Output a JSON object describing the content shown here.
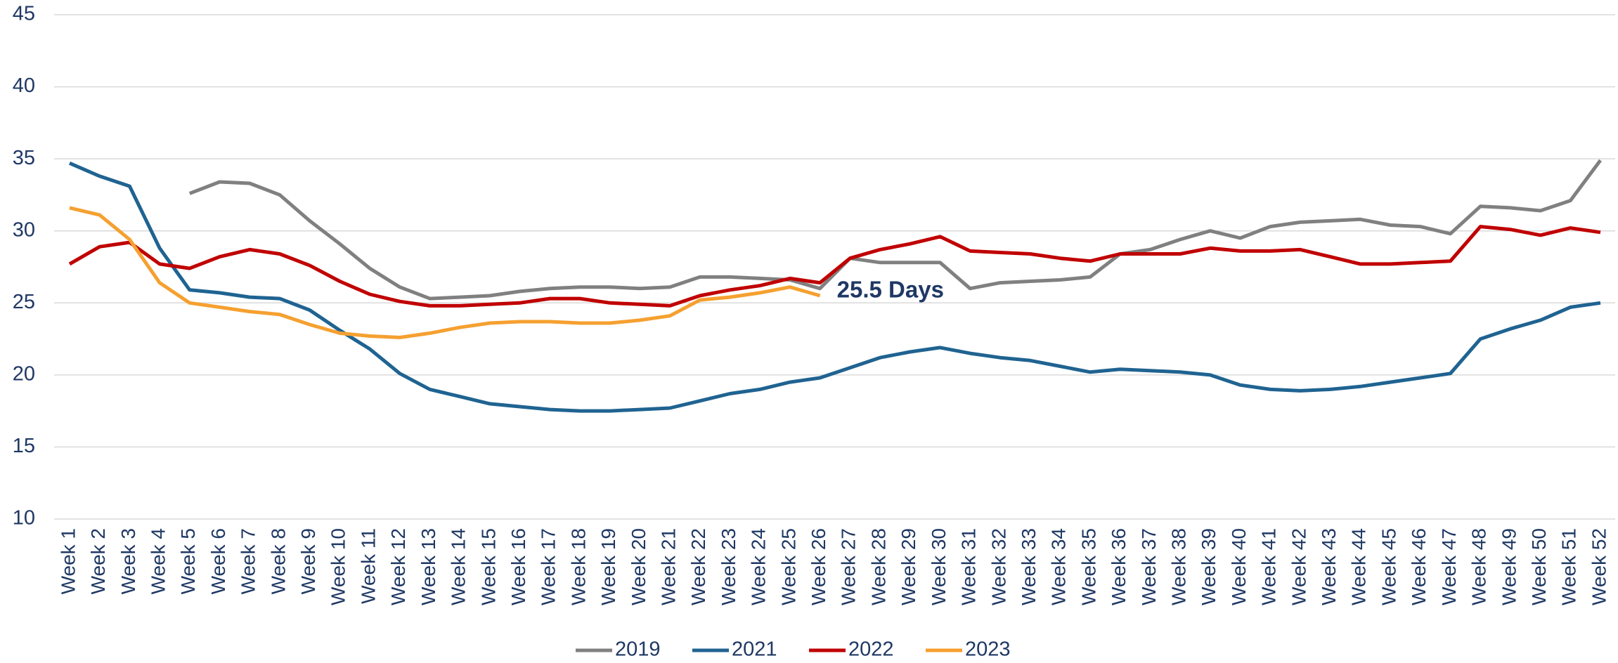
{
  "chart_data": {
    "type": "line",
    "categories": [
      "Week 1",
      "Week 2",
      "Week 3",
      "Week 4",
      "Week 5",
      "Week 6",
      "Week 7",
      "Week 8",
      "Week 9",
      "Week 10",
      "Week 11",
      "Week 12",
      "Week 13",
      "Week 14",
      "Week 15",
      "Week 16",
      "Week 17",
      "Week 18",
      "Week 19",
      "Week 20",
      "Week 21",
      "Week 22",
      "Week 23",
      "Week 24",
      "Week 25",
      "Week 26",
      "Week 27",
      "Week 28",
      "Week 29",
      "Week 30",
      "Week 31",
      "Week 32",
      "Week 33",
      "Week 34",
      "Week 35",
      "Week 36",
      "Week 37",
      "Week 38",
      "Week 39",
      "Week 40",
      "Week 41",
      "Week 42",
      "Week 43",
      "Week 44",
      "Week 45",
      "Week 46",
      "Week 47",
      "Week 48",
      "Week 49",
      "Week 50",
      "Week 51",
      "Week 52"
    ],
    "series": [
      {
        "name": "2019",
        "color": "#808080",
        "values": [
          null,
          null,
          null,
          null,
          32.6,
          33.4,
          33.3,
          32.5,
          30.7,
          29.1,
          27.4,
          26.1,
          25.3,
          25.4,
          25.5,
          25.8,
          26.0,
          26.1,
          26.1,
          26.0,
          26.1,
          26.8,
          26.8,
          26.7,
          26.6,
          26.0,
          28.1,
          27.8,
          27.8,
          27.8,
          26.0,
          26.4,
          26.5,
          26.6,
          26.8,
          28.4,
          28.7,
          29.4,
          30.0,
          29.5,
          30.3,
          30.6,
          30.7,
          30.8,
          30.4,
          30.3,
          29.8,
          31.7,
          31.6,
          31.4,
          32.1,
          34.9
        ]
      },
      {
        "name": "2021",
        "color": "#1f6391",
        "values": [
          34.7,
          33.8,
          33.1,
          28.8,
          25.9,
          25.7,
          25.4,
          25.3,
          24.5,
          23.1,
          21.8,
          20.1,
          19.0,
          18.5,
          18.0,
          17.8,
          17.6,
          17.5,
          17.5,
          17.6,
          17.7,
          18.2,
          18.7,
          19.0,
          19.5,
          19.8,
          20.5,
          21.2,
          21.6,
          21.9,
          21.5,
          21.2,
          21.0,
          20.6,
          20.2,
          20.4,
          20.3,
          20.2,
          20.0,
          19.3,
          19.0,
          18.9,
          19.0,
          19.2,
          19.5,
          19.8,
          20.1,
          22.5,
          23.2,
          23.8,
          24.7,
          25.0
        ]
      },
      {
        "name": "2022",
        "color": "#c00000",
        "values": [
          27.7,
          28.9,
          29.2,
          27.7,
          27.4,
          28.2,
          28.7,
          28.4,
          27.6,
          26.5,
          25.6,
          25.1,
          24.8,
          24.8,
          24.9,
          25.0,
          25.3,
          25.3,
          25.0,
          24.9,
          24.8,
          25.5,
          25.9,
          26.2,
          26.7,
          26.4,
          28.1,
          28.7,
          29.1,
          29.6,
          28.6,
          28.5,
          28.4,
          28.1,
          27.9,
          28.4,
          28.4,
          28.4,
          28.8,
          28.6,
          28.6,
          28.7,
          28.2,
          27.7,
          27.7,
          27.8,
          27.9,
          30.3,
          30.1,
          29.7,
          30.2,
          29.9
        ]
      },
      {
        "name": "2023",
        "color": "#f5a030",
        "values": [
          31.6,
          31.1,
          29.4,
          26.4,
          25.0,
          24.7,
          24.4,
          24.2,
          23.5,
          22.9,
          22.7,
          22.6,
          22.9,
          23.3,
          23.6,
          23.7,
          23.7,
          23.6,
          23.6,
          23.8,
          24.1,
          25.2,
          25.4,
          25.7,
          26.1,
          25.5,
          null,
          null,
          null,
          null,
          null,
          null,
          null,
          null,
          null,
          null,
          null,
          null,
          null,
          null,
          null,
          null,
          null,
          null,
          null,
          null,
          null,
          null,
          null,
          null,
          null,
          null
        ]
      }
    ],
    "annotation": "25.5 Days",
    "ylim": [
      10,
      45
    ],
    "yticks": [
      10,
      15,
      20,
      25,
      30,
      35,
      40,
      45
    ],
    "grid": true,
    "legend": "bottom"
  }
}
